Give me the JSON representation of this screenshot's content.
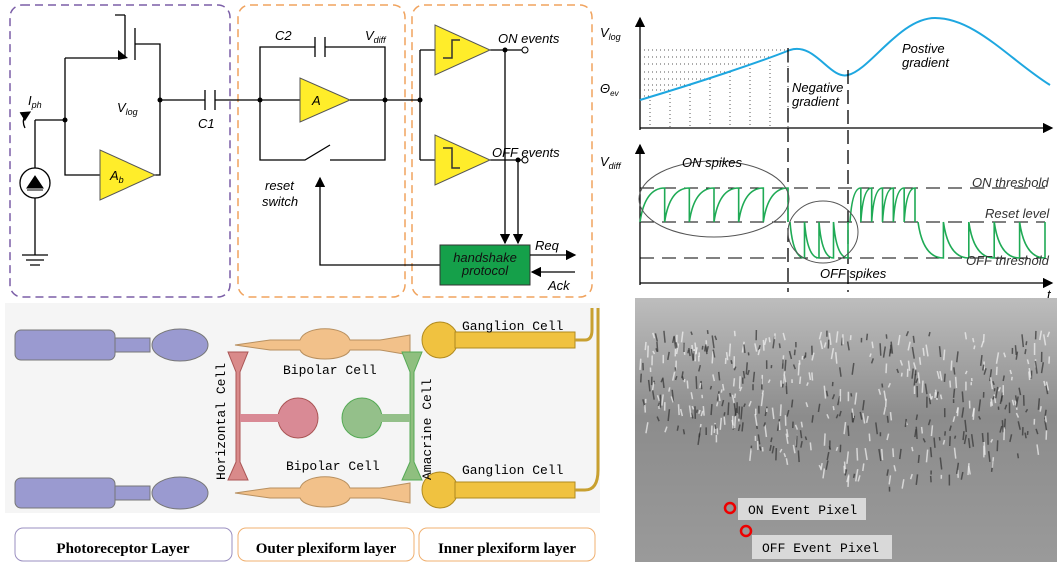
{
  "circuit": {
    "photodiode_current": {
      "text": "I",
      "sub": "ph"
    },
    "v_log": {
      "text": "V",
      "sub": "log"
    },
    "c1": "C1",
    "c2": "C2",
    "v_diff": {
      "text": "V",
      "sub": "diff"
    },
    "amp_a": "A",
    "amp_b": {
      "text": "A",
      "sub": "b"
    },
    "on_events": "ON events",
    "off_events": "OFF events",
    "reset_switch": [
      "reset",
      "switch"
    ],
    "handshake": [
      "handshake",
      "protocol"
    ],
    "req": "Req",
    "ack": "Ack"
  },
  "waveforms": {
    "v_log": {
      "text": "V",
      "sub": "log"
    },
    "theta": {
      "text": "Θ",
      "sub": "ev"
    },
    "negative_gradient": [
      "Negative",
      "gradient"
    ],
    "positive_gradient": [
      "Postive",
      "gradient"
    ],
    "v_diff": {
      "text": "V",
      "sub": "diff"
    },
    "on_spikes": "ON spikes",
    "on_threshold": "ON threshold",
    "reset_level": "Reset level",
    "off_threshold": "OFF threshold",
    "off_spikes": "OFF spikes",
    "time": "t"
  },
  "retina": {
    "bipolar_top": "Bipolar Cell",
    "bipolar_bottom": "Bipolar Cell",
    "ganglion_top": "Ganglion Cell",
    "ganglion_bottom": "Ganglion Cell",
    "horizontal": "Horizontal Cell",
    "amacrine": "Amacrine Cell",
    "layers": [
      "Photoreceptor Layer",
      "Outer plexiform layer",
      "Inner plexiform layer"
    ]
  },
  "event_image": {
    "on_pixel": "ON Event Pixel",
    "off_pixel": "OFF Event Pixel"
  }
}
